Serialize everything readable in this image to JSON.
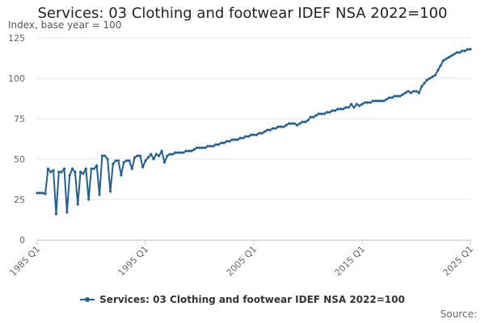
{
  "chart_data": {
    "type": "line",
    "title": "Services: 03 Clothing and footwear IDEF NSA 2022=100",
    "subtitle": "Index, base year = 100",
    "ylim": [
      0,
      125
    ],
    "y_ticks": [
      0,
      25,
      50,
      75,
      100,
      125
    ],
    "x_ticks": [
      "1985 Q1",
      "1995 Q1",
      "2005 Q1",
      "2015 Q1",
      "2025 Q1"
    ],
    "x_tick_values": [
      1985,
      1995,
      2005,
      2015,
      2025
    ],
    "series_color": "#206095",
    "legend_position": "bottom",
    "grid": true,
    "credits": "Source:",
    "series": [
      {
        "name": "Services: 03 Clothing and footwear IDEF NSA 2022=100",
        "x": [
          1985.0,
          1985.25,
          1985.5,
          1985.75,
          1986.0,
          1986.25,
          1986.5,
          1986.75,
          1987.0,
          1987.25,
          1987.5,
          1987.75,
          1988.0,
          1988.25,
          1988.5,
          1988.75,
          1989.0,
          1989.25,
          1989.5,
          1989.75,
          1990.0,
          1990.25,
          1990.5,
          1990.75,
          1991.0,
          1991.25,
          1991.5,
          1991.75,
          1992.0,
          1992.25,
          1992.5,
          1992.75,
          1993.0,
          1993.25,
          1993.5,
          1993.75,
          1994.0,
          1994.25,
          1994.5,
          1994.75,
          1995.0,
          1995.25,
          1995.5,
          1995.75,
          1996.0,
          1996.25,
          1996.5,
          1996.75,
          1997.0,
          1997.25,
          1997.5,
          1997.75,
          1998.0,
          1998.25,
          1998.5,
          1998.75,
          1999.0,
          1999.25,
          1999.5,
          1999.75,
          2000.0,
          2000.25,
          2000.5,
          2000.75,
          2001.0,
          2001.25,
          2001.5,
          2001.75,
          2002.0,
          2002.25,
          2002.5,
          2002.75,
          2003.0,
          2003.25,
          2003.5,
          2003.75,
          2004.0,
          2004.25,
          2004.5,
          2004.75,
          2005.0,
          2005.25,
          2005.5,
          2005.75,
          2006.0,
          2006.25,
          2006.5,
          2006.75,
          2007.0,
          2007.25,
          2007.5,
          2007.75,
          2008.0,
          2008.25,
          2008.5,
          2008.75,
          2009.0,
          2009.25,
          2009.5,
          2009.75,
          2010.0,
          2010.25,
          2010.5,
          2010.75,
          2011.0,
          2011.25,
          2011.5,
          2011.75,
          2012.0,
          2012.25,
          2012.5,
          2012.75,
          2013.0,
          2013.25,
          2013.5,
          2013.75,
          2014.0,
          2014.25,
          2014.5,
          2014.75,
          2015.0,
          2015.25,
          2015.5,
          2015.75,
          2016.0,
          2016.25,
          2016.5,
          2016.75,
          2017.0,
          2017.25,
          2017.5,
          2017.75,
          2018.0,
          2018.25,
          2018.5,
          2018.75,
          2019.0,
          2019.25,
          2019.5,
          2019.75,
          2020.0,
          2020.25,
          2020.5,
          2020.75,
          2021.0,
          2021.25,
          2021.5,
          2021.75,
          2022.0,
          2022.25,
          2022.5,
          2022.75,
          2023.0,
          2023.25,
          2023.5,
          2023.75,
          2024.0,
          2024.25,
          2024.5,
          2024.75,
          2025.0
        ],
        "y": [
          29,
          29,
          29,
          28.5,
          44,
          42,
          43,
          16,
          42,
          42,
          44,
          17,
          40,
          44,
          42,
          22,
          42,
          41,
          44,
          25,
          44,
          44,
          46,
          28,
          52,
          52,
          50,
          30,
          47,
          49,
          49,
          40,
          48,
          49,
          49,
          44,
          51,
          52,
          52,
          45,
          49,
          51,
          53,
          50,
          53,
          52,
          55,
          48,
          52,
          53,
          53,
          54,
          54,
          54,
          54,
          55,
          55,
          55,
          56,
          57,
          57,
          57,
          57,
          58,
          58,
          58,
          59,
          59,
          60,
          60,
          61,
          61,
          62,
          62,
          62,
          63,
          63,
          64,
          64,
          65,
          65,
          65,
          66,
          66,
          67,
          68,
          68,
          69,
          69,
          70,
          70,
          70,
          71,
          72,
          72,
          72,
          71,
          72,
          73,
          73,
          74,
          76,
          76,
          77,
          78,
          78,
          78,
          79,
          79,
          80,
          80,
          81,
          81,
          81,
          82,
          82,
          84,
          82,
          84,
          83,
          84,
          85,
          85,
          85,
          86,
          86,
          86,
          86,
          86,
          87,
          88,
          88,
          89,
          89,
          89,
          90,
          91,
          92,
          91,
          92,
          92,
          91,
          95,
          97,
          99,
          100,
          101,
          102,
          105,
          108,
          111,
          112,
          113,
          114,
          115,
          116,
          116,
          117,
          117,
          118,
          118
        ]
      }
    ]
  }
}
